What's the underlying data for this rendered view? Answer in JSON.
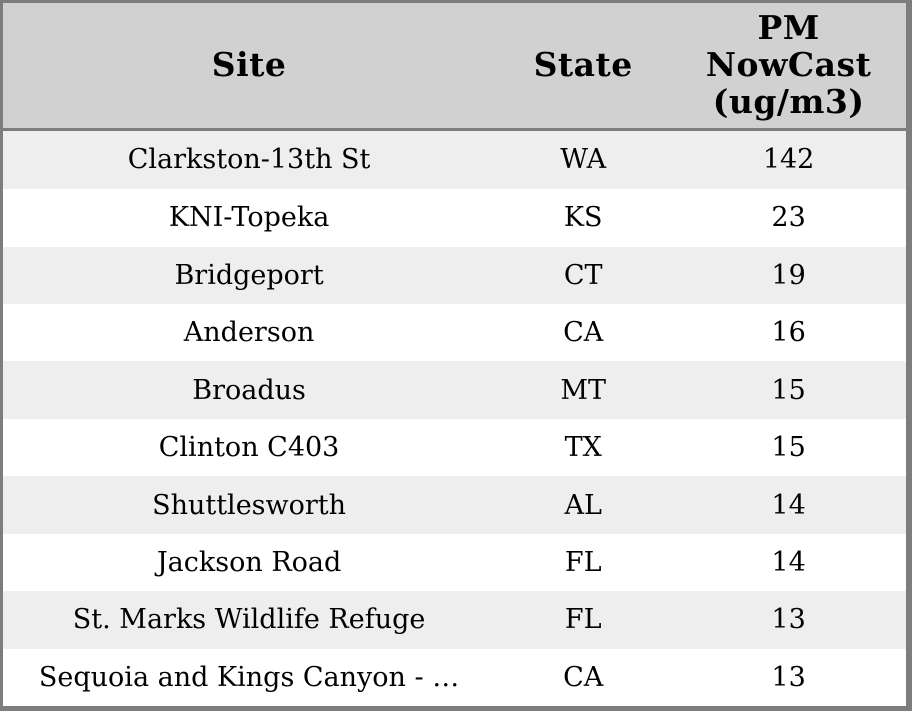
{
  "chart_data": {
    "type": "table",
    "title": "",
    "columns": [
      "Site",
      "State",
      "PM NowCast (ug/m3)"
    ],
    "rows": [
      {
        "site": "Clarkston-13th St",
        "state": "WA",
        "pm_nowcast": "142"
      },
      {
        "site": "KNI-Topeka",
        "state": "KS",
        "pm_nowcast": "23"
      },
      {
        "site": "Bridgeport",
        "state": "CT",
        "pm_nowcast": "19"
      },
      {
        "site": "Anderson",
        "state": "CA",
        "pm_nowcast": "16"
      },
      {
        "site": "Broadus",
        "state": "MT",
        "pm_nowcast": "15"
      },
      {
        "site": "Clinton C403",
        "state": "TX",
        "pm_nowcast": "15"
      },
      {
        "site": "Shuttlesworth",
        "state": "AL",
        "pm_nowcast": "14"
      },
      {
        "site": "Jackson Road",
        "state": "FL",
        "pm_nowcast": "14"
      },
      {
        "site": "St. Marks Wildlife Refuge",
        "state": "FL",
        "pm_nowcast": "13"
      },
      {
        "site": "Sequoia and Kings Canyon - …",
        "state": "CA",
        "pm_nowcast": "13"
      }
    ],
    "layout": {
      "striped": true,
      "header_align": "center",
      "cell_align": "center"
    },
    "colors": {
      "header_bg": "#d1d1d1",
      "border": "#7d7d7d",
      "stripe_row_bg": "#eeeeee",
      "plain_row_bg": "#ffffff",
      "text": "#000000"
    }
  }
}
